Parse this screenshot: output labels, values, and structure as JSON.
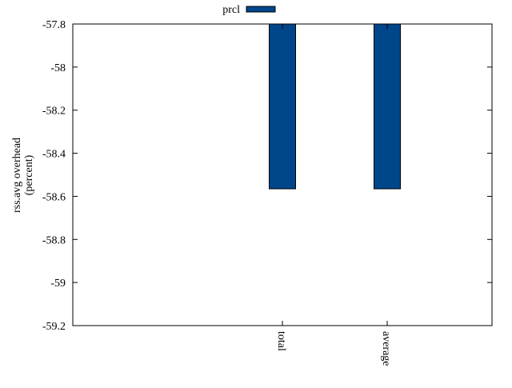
{
  "chart_data": {
    "type": "bar",
    "title": "",
    "xlabel": "",
    "ylabel": [
      "rss.avg overhead",
      "(percent)"
    ],
    "categories": [
      "total",
      "average"
    ],
    "series": [
      {
        "name": "prcl",
        "color": "#00468b",
        "values": [
          -58.565,
          -58.565
        ]
      }
    ],
    "ylim": [
      -59.2,
      -57.8
    ],
    "yticks": [
      -57.8,
      -58,
      -58.2,
      -58.4,
      -58.6,
      -58.8,
      -59,
      -59.2
    ],
    "ytick_labels": [
      "-57.8",
      "-58",
      "-58.2",
      "-58.4",
      "-58.6",
      "-58.8",
      "-59",
      "-59.2"
    ],
    "legend_position": "top-center",
    "grid": false,
    "bar_base": "top"
  }
}
